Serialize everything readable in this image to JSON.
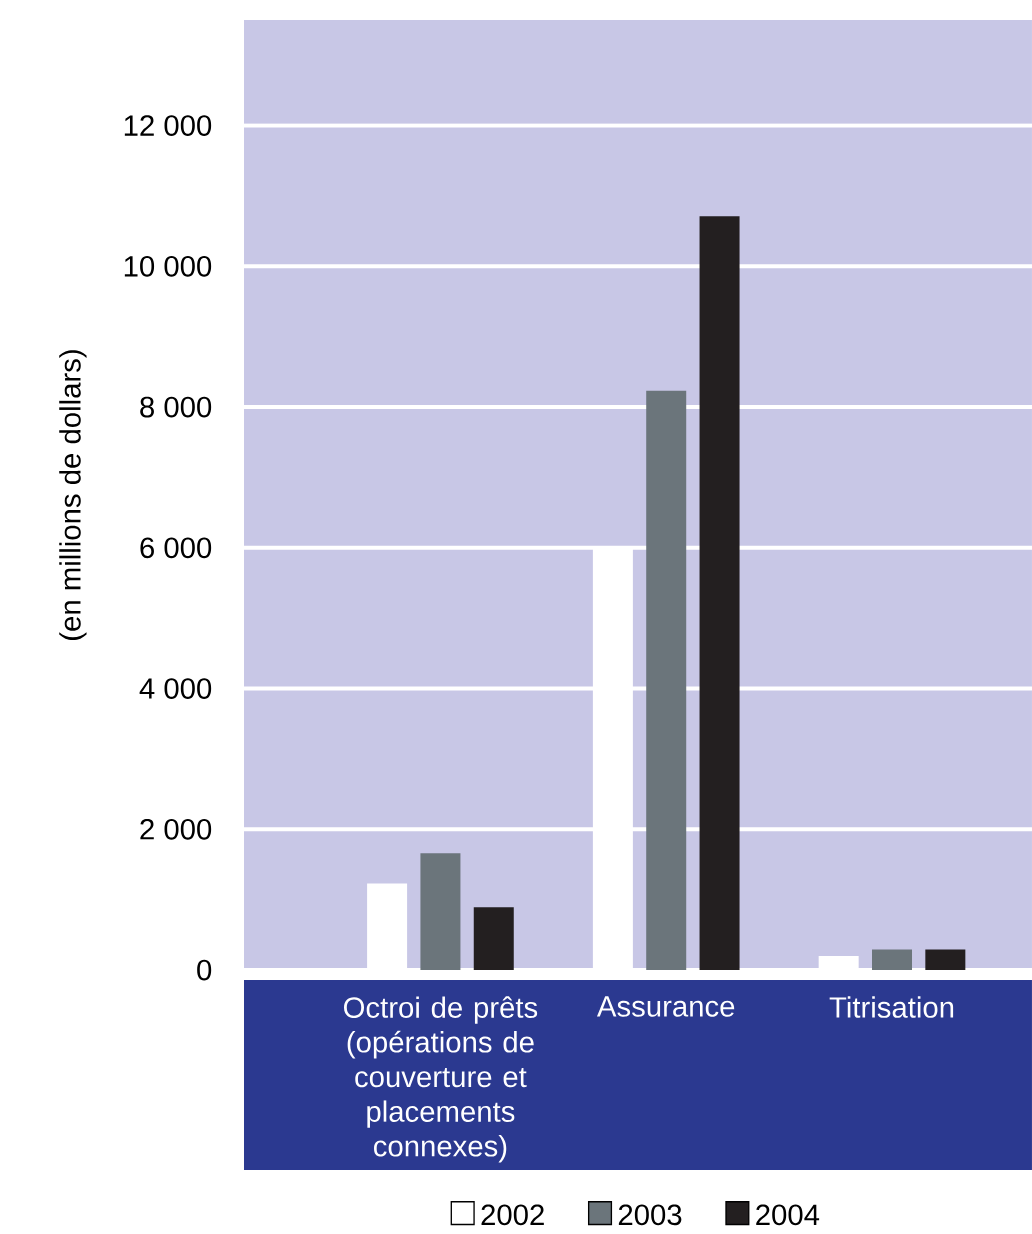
{
  "chart_data": {
    "type": "bar",
    "ylabel": "(en millions de dollars)",
    "categories": [
      "Octroi de prêts (opérations de couverture et placements connexes)",
      "Assurance",
      "Titrisation"
    ],
    "series": [
      {
        "name": "2002",
        "color": "#ffffff",
        "values": [
          1230,
          6000,
          200
        ]
      },
      {
        "name": "2003",
        "color": "#6b757b",
        "values": [
          1660,
          8230,
          290
        ]
      },
      {
        "name": "2004",
        "color": "#231f20",
        "values": [
          890,
          10710,
          290
        ]
      }
    ],
    "ylim": [
      0,
      13500
    ],
    "yticks": [
      0,
      {
        "value": 2000,
        "label": "2 000"
      },
      {
        "value": 4000,
        "label": "4 000"
      },
      {
        "value": 6000,
        "label": "6 000"
      },
      {
        "value": 8000,
        "label": "8 000"
      },
      {
        "value": 10000,
        "label": "10 000"
      },
      {
        "value": 12000,
        "label": "12 000"
      }
    ],
    "grid": "y",
    "legend": "bottom"
  }
}
